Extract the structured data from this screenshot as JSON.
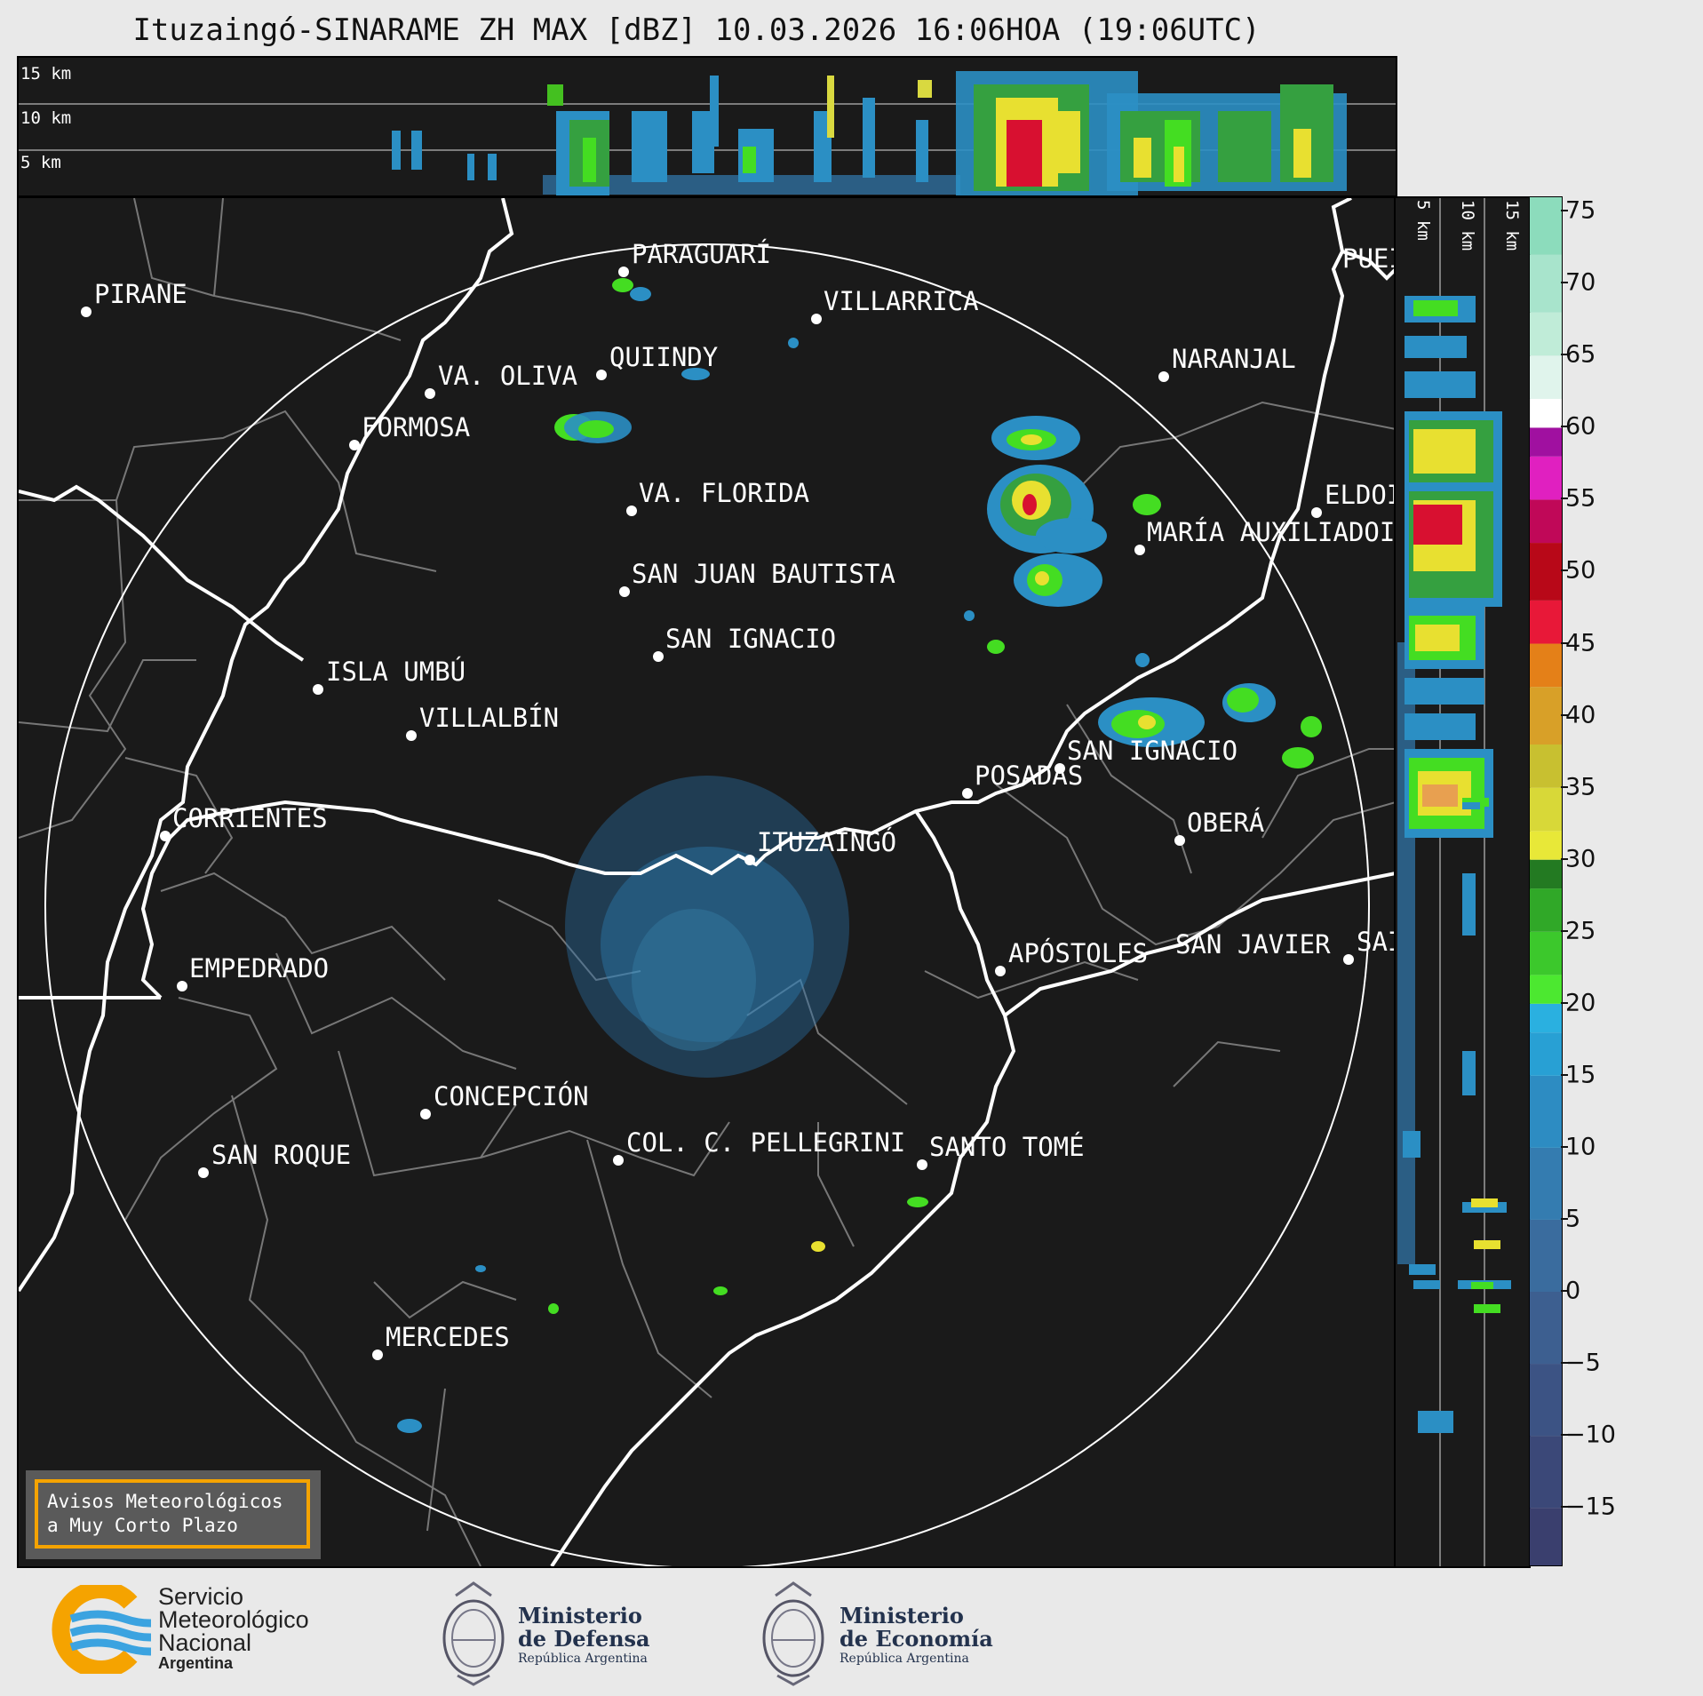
{
  "title": "Ituzaingó-SINARAME ZH MAX [dBZ] 10.03.2026 16:06HOA (19:06UTC)",
  "top_section": {
    "height_labels": [
      "15 km",
      "10 km",
      "5 km"
    ]
  },
  "side_section": {
    "height_labels": [
      "5 km",
      "10 km",
      "15 km"
    ]
  },
  "colorbar": {
    "unit": "dBZ",
    "ticks": [
      "75",
      "70",
      "65",
      "60",
      "55",
      "50",
      "45",
      "40",
      "35",
      "30",
      "25",
      "20",
      "15",
      "10",
      "5",
      "0",
      "−5",
      "−10",
      "−15"
    ],
    "range": [
      -19,
      76
    ]
  },
  "cities": [
    {
      "name": "PIRANE"
    },
    {
      "name": "PARAGUARÍ"
    },
    {
      "name": "VILLARRICA"
    },
    {
      "name": "QUIINDY"
    },
    {
      "name": "VA. OLIVA"
    },
    {
      "name": "FORMOSA"
    },
    {
      "name": "NARANJAL"
    },
    {
      "name": "PUEI"
    },
    {
      "name": "VA. FLORIDA"
    },
    {
      "name": "ELDOI"
    },
    {
      "name": "MARÍA AUXILIADOI"
    },
    {
      "name": "SAN JUAN BAUTISTA"
    },
    {
      "name": "SAN IGNACIO"
    },
    {
      "name": "ISLA UMBÚ"
    },
    {
      "name": "VILLALBÍN"
    },
    {
      "name": "SAN IGNACIO"
    },
    {
      "name": "POSADAS"
    },
    {
      "name": "CORRIENTES"
    },
    {
      "name": "ITUZAINGÓ"
    },
    {
      "name": "OBERÁ"
    },
    {
      "name": "APÓSTOLES"
    },
    {
      "name": "SAN JAVIER"
    },
    {
      "name": "SAI"
    },
    {
      "name": "EMPEDRADO"
    },
    {
      "name": "CONCEPCIÓN"
    },
    {
      "name": "COL. C. PELLEGRINI"
    },
    {
      "name": "SANTO TOMÉ"
    },
    {
      "name": "SAN ROQUE"
    },
    {
      "name": "MERCEDES"
    }
  ],
  "warning_box": {
    "line1": "Avisos Meteorológicos",
    "line2": "a Muy Corto Plazo",
    "border_color": "#f5a300"
  },
  "footer": {
    "smn_line1": "Servicio",
    "smn_line2": "Meteorológico",
    "smn_line3": "Nacional",
    "smn_line4": "Argentina",
    "defensa_line1": "Ministerio",
    "defensa_line2": "de Defensa",
    "defensa_line3": "República Argentina",
    "economia_line1": "Ministerio",
    "economia_line2": "de Economía",
    "economia_line3": "República Argentina"
  }
}
